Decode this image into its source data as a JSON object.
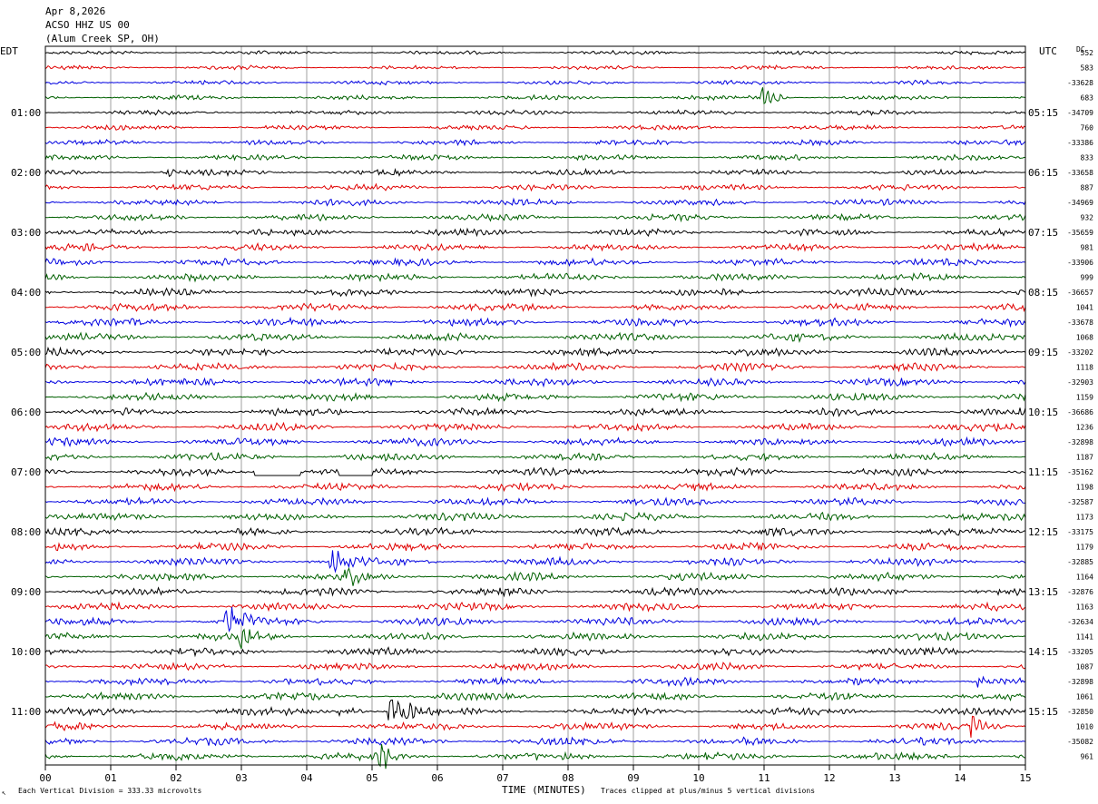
{
  "header": {
    "date": "Apr 8,2026",
    "station": "ACSO HHZ US 00",
    "location": "(Alum Creek SP, OH)"
  },
  "chart_data": {
    "type": "line",
    "left_axis_title": "EDT",
    "right_axis_title": "UTC",
    "dc_title": "DC",
    "xlabel": "TIME (MINUTES)",
    "xlim": [
      0,
      15
    ],
    "x_ticks": [
      "00",
      "01",
      "02",
      "03",
      "04",
      "05",
      "06",
      "07",
      "08",
      "09",
      "10",
      "11",
      "12",
      "13",
      "14",
      "15"
    ],
    "rows_per_hour": 4,
    "minutes_per_row": 15,
    "colors": [
      "#000000",
      "#e00000",
      "#0000e0",
      "#006000"
    ],
    "left_hour_labels": [
      "01:00",
      "02:00",
      "03:00",
      "04:00",
      "05:00",
      "06:00",
      "07:00",
      "08:00",
      "09:00",
      "10:00",
      "11:00"
    ],
    "right_hour_labels": [
      "05:15",
      "06:15",
      "07:15",
      "08:15",
      "09:15",
      "10:15",
      "11:15",
      "12:15",
      "13:15",
      "14:15",
      "15:15"
    ],
    "dc_offsets": [
      "552",
      "583",
      "-33628",
      "683",
      "-34709",
      "760",
      "-33386",
      "833",
      "-33658",
      "887",
      "-34969",
      "932",
      "-35659",
      "981",
      "-33906",
      "999",
      "-36657",
      "1041",
      "-33678",
      "1068",
      "-33202",
      "1118",
      "-32903",
      "1159",
      "-36686",
      "1236",
      "-32898",
      "1187",
      "-35162",
      "1198",
      "-32587",
      "1173",
      "-33175",
      "1179",
      "-32885",
      "1164",
      "-32876",
      "1163",
      "-32634",
      "1141",
      "-33205",
      "1087",
      "-32898",
      "1061",
      "-32850",
      "1010",
      "-35082",
      "961"
    ],
    "events": [
      {
        "row": 3,
        "minute": 11.0,
        "amp": 4,
        "len": 0.35
      },
      {
        "row": 8,
        "minute": 1.9,
        "amp": 1.8,
        "len": 0.1
      },
      {
        "row": 34,
        "minute": 4.4,
        "amp": 3,
        "len": 0.5
      },
      {
        "row": 35,
        "minute": 4.6,
        "amp": 2,
        "len": 0.4
      },
      {
        "row": 38,
        "minute": 2.8,
        "amp": 3.5,
        "len": 0.5
      },
      {
        "row": 39,
        "minute": 3.0,
        "amp": 2,
        "len": 0.6
      },
      {
        "row": 44,
        "minute": 4.5,
        "amp": 2,
        "len": 0.4
      },
      {
        "row": 44,
        "minute": 5.3,
        "amp": 4,
        "len": 0.5
      },
      {
        "row": 47,
        "minute": 5.15,
        "amp": 4,
        "len": 0.25
      },
      {
        "row": 45,
        "minute": 14.2,
        "amp": 2.5,
        "len": 0.2
      },
      {
        "row": 42,
        "minute": 14.3,
        "amp": 2.5,
        "len": 0.2
      }
    ],
    "gaps": [
      {
        "row": 28,
        "start": 3.2,
        "end": 3.9
      },
      {
        "row": 28,
        "start": 4.5,
        "end": 5.0
      }
    ]
  },
  "footer": {
    "scale_note": "Each Vertical Division =  333.33 microvolts",
    "clip_note": "Traces clipped at plus/minus 5 vertical divisions"
  }
}
